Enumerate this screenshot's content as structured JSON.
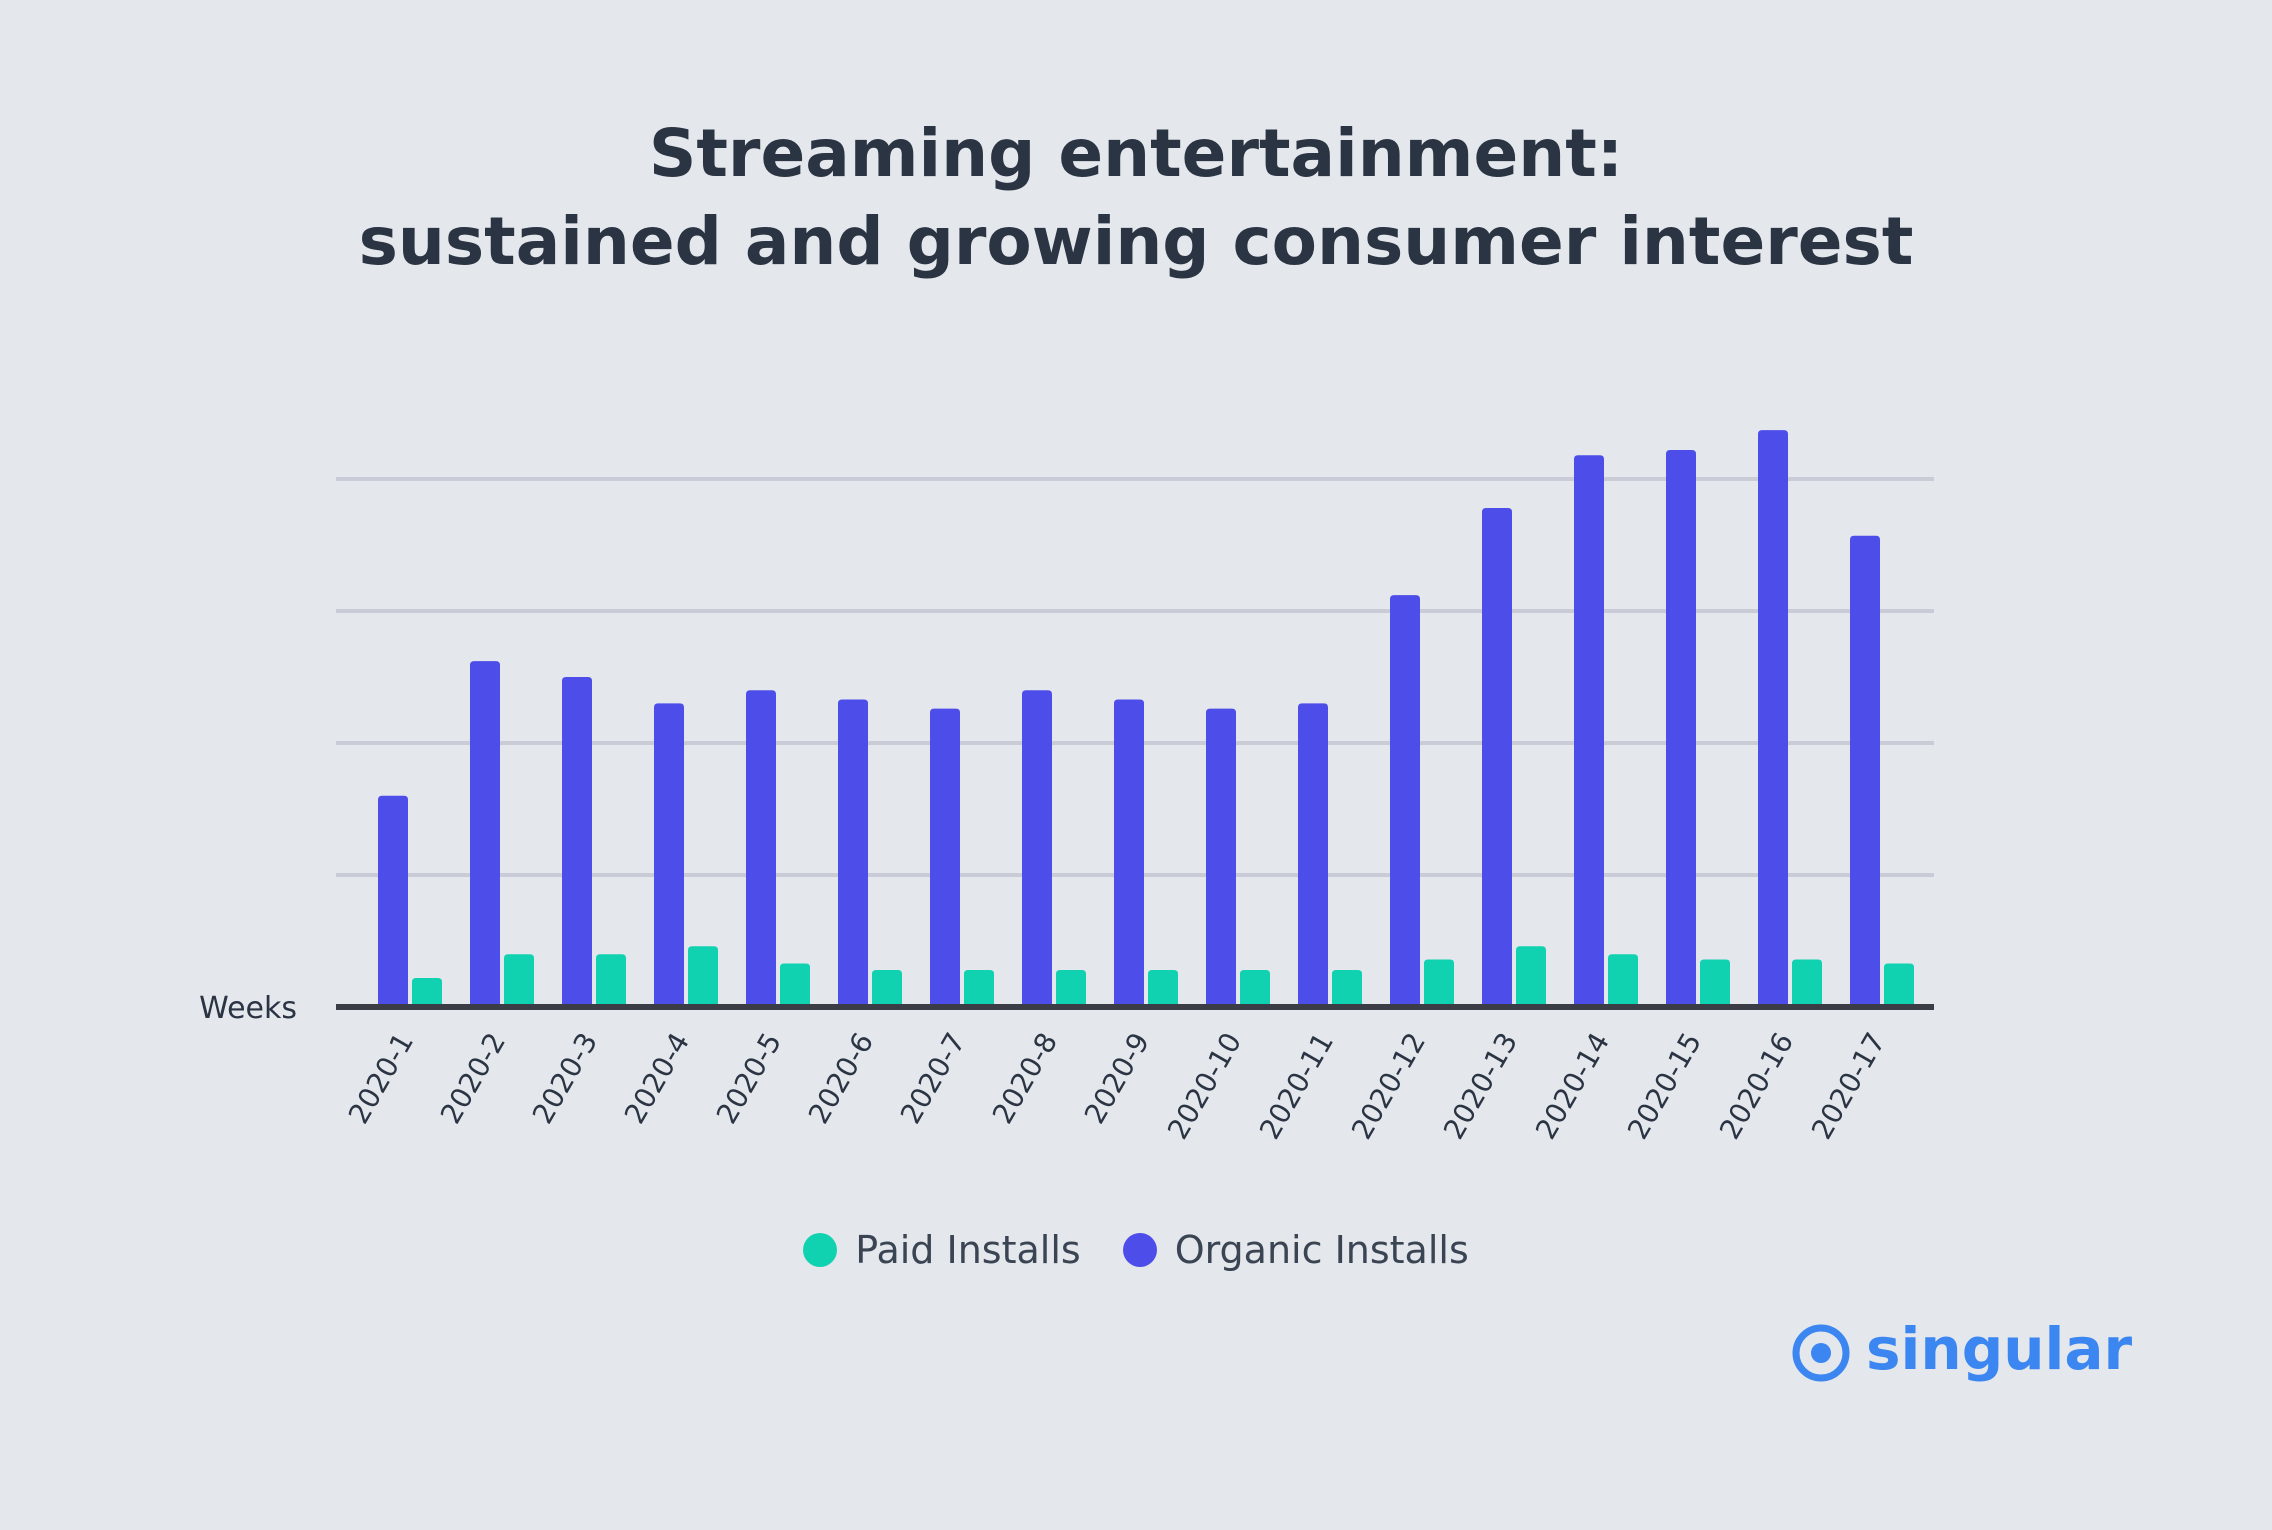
{
  "title_line1": "Streaming entertainment:",
  "title_line2": "sustained and growing consumer interest",
  "legend": {
    "paid_label": "Paid Installs",
    "organic_label": "Organic Installs"
  },
  "brand": {
    "name": "singular",
    "color": "#3b86f0"
  },
  "colors": {
    "paid": "#10d2b0",
    "organic": "#4d4eea",
    "grid": "#c9ccd6",
    "axis": "#3a3d45",
    "text": "#2a3443"
  },
  "chart_data": {
    "type": "bar",
    "xlabel": "Weeks",
    "ylabel": "",
    "ylim": [
      0,
      4.3
    ],
    "gridlines": [
      1,
      2,
      3,
      4
    ],
    "categories": [
      "2020-1",
      "2020-2",
      "2020-3",
      "2020-4",
      "2020-5",
      "2020-6",
      "2020-7",
      "2020-8",
      "2020-9",
      "2020-10",
      "2020-11",
      "2020-12",
      "2020-13",
      "2020-14",
      "2020-15",
      "2020-16",
      "2020-17"
    ],
    "series": [
      {
        "name": "Organic Installs",
        "values": [
          1.6,
          2.62,
          2.5,
          2.3,
          2.4,
          2.33,
          2.26,
          2.4,
          2.33,
          2.26,
          2.3,
          3.12,
          3.78,
          4.18,
          4.22,
          4.37,
          3.57
        ]
      },
      {
        "name": "Paid Installs",
        "values": [
          0.22,
          0.4,
          0.4,
          0.46,
          0.33,
          0.28,
          0.28,
          0.28,
          0.28,
          0.28,
          0.28,
          0.36,
          0.46,
          0.4,
          0.36,
          0.36,
          0.33
        ]
      }
    ],
    "legend_position": "bottom-center",
    "grid": true
  }
}
